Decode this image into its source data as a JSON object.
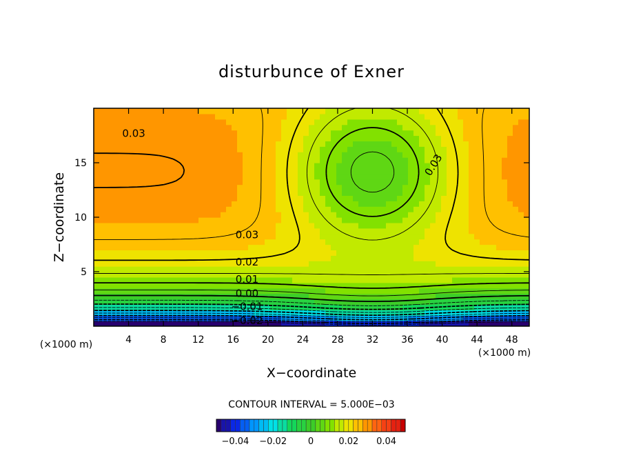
{
  "chart_data": {
    "type": "contour",
    "title": "disturbunce of Exner",
    "xlabel": "X−coordinate",
    "ylabel": "Z−coordinate",
    "x_unit": "(×1000 m)",
    "y_unit": "(×1000 m)",
    "xlim": [
      0,
      50
    ],
    "ylim": [
      0,
      20
    ],
    "x_ticks": [
      4,
      8,
      12,
      16,
      20,
      24,
      28,
      32,
      36,
      40,
      44,
      48
    ],
    "y_ticks": [
      5,
      10,
      15
    ],
    "contour_interval_text": "CONTOUR INTERVAL = 5.000E−03",
    "contour_labels": [
      {
        "text": "0.03",
        "x": 4.6,
        "y": 17.7
      },
      {
        "text": "0.03",
        "x": 39.0,
        "y": 14.8
      },
      {
        "text": "0.03",
        "x": 17.6,
        "y": 8.4
      },
      {
        "text": "0.02",
        "x": 17.6,
        "y": 5.9
      },
      {
        "text": "0.01",
        "x": 17.6,
        "y": 4.3
      },
      {
        "text": "0.00",
        "x": 17.6,
        "y": 3.0
      },
      {
        "text": "−0.01",
        "x": 17.6,
        "y": 1.8
      },
      {
        "text": "−0.02",
        "x": 17.6,
        "y": 0.5
      }
    ],
    "colorbar": {
      "range": [
        -0.05,
        0.05
      ],
      "ticks": [
        "−0.04",
        "−0.02",
        "0",
        "0.02",
        "0.04"
      ],
      "tick_values": [
        -0.04,
        -0.02,
        0,
        0.02,
        0.04
      ]
    },
    "field_features": {
      "maxima": [
        {
          "x": 14.5,
          "y": 12.0,
          "level": 0.04
        },
        {
          "x": 48,
          "y": 12.0,
          "level": 0.04
        }
      ],
      "minimum": {
        "x": 32,
        "y": 0.3,
        "level": -0.045
      },
      "negative_contours": "dashed"
    }
  }
}
